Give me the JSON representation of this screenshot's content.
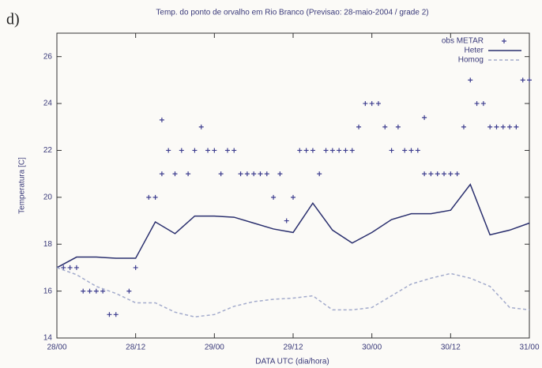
{
  "chart_data": {
    "type": "line",
    "panel_label": "d)",
    "title": "Temp. do ponto de orvalho em Rio Branco (Previsao: 28-maio-2004 / grade 2)",
    "x_label": "DATA UTC (dia/hora)",
    "y_label": "Temperatura [C]",
    "xlim": [
      0,
      72
    ],
    "xticks": [
      {
        "value": 0,
        "label": "28/00"
      },
      {
        "value": 12,
        "label": "28/12"
      },
      {
        "value": 24,
        "label": "29/00"
      },
      {
        "value": 36,
        "label": "29/12"
      },
      {
        "value": 48,
        "label": "30/00"
      },
      {
        "value": 60,
        "label": "30/12"
      },
      {
        "value": 72,
        "label": "31/00"
      }
    ],
    "ylim": [
      14,
      27
    ],
    "yticks": [
      14,
      16,
      18,
      20,
      22,
      24,
      26
    ],
    "legend": "top-right",
    "series": [
      {
        "name": "obs METAR",
        "color": "#3d3d8f",
        "mode": "markers",
        "x": [
          1,
          2,
          3,
          4,
          5,
          6,
          7,
          8,
          9,
          11,
          12,
          14,
          15,
          16,
          16,
          17,
          18,
          19,
          20,
          21,
          22,
          23,
          24,
          25,
          26,
          27,
          28,
          29,
          30,
          31,
          32,
          33,
          34,
          35,
          36,
          37,
          38,
          39,
          40,
          41,
          42,
          43,
          44,
          45,
          46,
          47,
          48,
          49,
          50,
          51,
          52,
          53,
          54,
          55,
          56,
          56,
          57,
          58,
          59,
          60,
          61,
          62,
          63,
          64,
          65,
          66,
          67,
          68,
          69,
          70,
          71,
          72
        ],
        "values": [
          17,
          17,
          17,
          16,
          16,
          16,
          16,
          15,
          15,
          16,
          17,
          20,
          20,
          23.3,
          21,
          22,
          21,
          22,
          21,
          22,
          23,
          22,
          22,
          21,
          22,
          22,
          21,
          21,
          21,
          21,
          21,
          20,
          21,
          19,
          20,
          22,
          22,
          22,
          21,
          22,
          22,
          22,
          22,
          22,
          23,
          24,
          24,
          24,
          23,
          22,
          23,
          22,
          22,
          22,
          23.4,
          21,
          21,
          21,
          21,
          21,
          21,
          23,
          25,
          24,
          24,
          23,
          23,
          23,
          23,
          23,
          25,
          25
        ]
      },
      {
        "name": "Heter",
        "color": "#2a2f6e",
        "mode": "lines",
        "x": [
          0,
          3,
          6,
          9,
          12,
          15,
          18,
          21,
          24,
          27,
          30,
          33,
          36,
          39,
          42,
          45,
          48,
          51,
          54,
          57,
          60,
          63,
          66,
          69,
          72
        ],
        "values": [
          17.0,
          17.45,
          17.45,
          17.4,
          17.4,
          18.95,
          18.45,
          19.2,
          19.2,
          19.15,
          18.9,
          18.65,
          18.5,
          19.75,
          18.6,
          18.05,
          18.5,
          19.05,
          19.3,
          19.3,
          19.45,
          20.55,
          18.4,
          18.6,
          18.9
        ]
      },
      {
        "name": "Homog",
        "color": "#a3abcc",
        "mode": "lines",
        "dash": true,
        "x": [
          0,
          3,
          6,
          9,
          12,
          15,
          18,
          21,
          24,
          27,
          30,
          33,
          36,
          39,
          42,
          45,
          48,
          51,
          54,
          57,
          60,
          63,
          66,
          69,
          72
        ],
        "values": [
          17.0,
          16.7,
          16.2,
          15.9,
          15.5,
          15.5,
          15.1,
          14.9,
          15.0,
          15.35,
          15.55,
          15.65,
          15.7,
          15.8,
          15.2,
          15.2,
          15.3,
          15.8,
          16.3,
          16.55,
          16.75,
          16.55,
          16.2,
          15.3,
          15.2
        ]
      }
    ]
  }
}
